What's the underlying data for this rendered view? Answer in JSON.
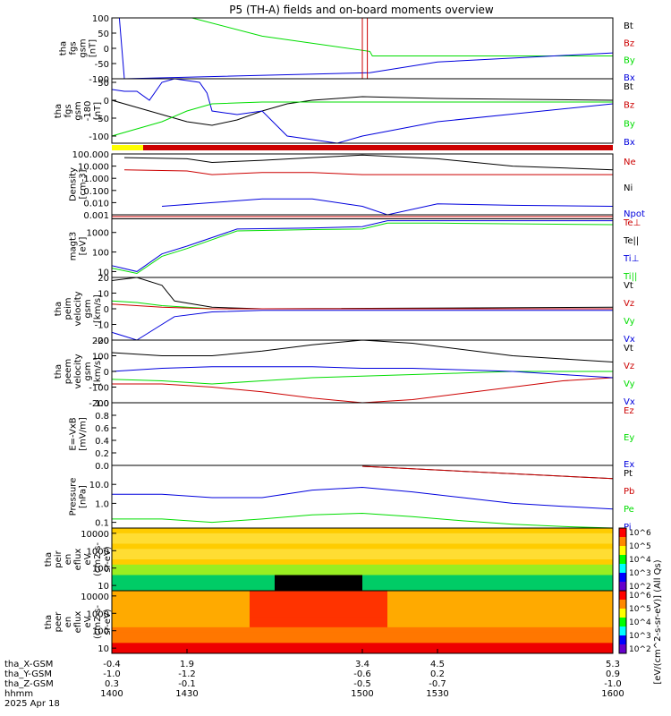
{
  "title": "P5 (TH-A) fields and on-board moments overview",
  "colors": {
    "black": "#000000",
    "red": "#cc0000",
    "green": "#00dd00",
    "blue": "#0000dd",
    "yellow": "#ffff00"
  },
  "chart_data": [
    {
      "type": "line",
      "ylabel": [
        "tha",
        "fgs",
        "gsm",
        "[nT]"
      ],
      "ylim": [
        -100,
        100
      ],
      "yticks": [
        "100",
        "50",
        "0",
        "-50",
        "-100"
      ],
      "legend": [
        "Bt",
        "Bz",
        "By",
        "Bx"
      ],
      "series": [
        {
          "name": "By",
          "x": [
            1400,
            1432,
            1460,
            1503,
            1504,
            1530,
            1600
          ],
          "y": [
            100,
            100,
            40,
            -10,
            -25,
            -25,
            -25
          ]
        },
        {
          "name": "Bx",
          "x": [
            1403,
            1405,
            1503,
            1530,
            1600
          ],
          "y": [
            100,
            -100,
            -80,
            -45,
            -15
          ]
        },
        {
          "name": "Bz",
          "x": [
            1500,
            1500,
            1502,
            1502
          ],
          "y": [
            -100,
            100,
            100,
            -100
          ]
        }
      ]
    },
    {
      "type": "line",
      "ylabel": [
        "tha",
        "fgs",
        "gsm",
        "-180",
        "[nT]"
      ],
      "ylim": [
        -120,
        60
      ],
      "yticks": [
        "50",
        "0",
        "-50",
        "-100"
      ],
      "legend": [
        "Bt",
        "Bz",
        "By",
        "Bx"
      ],
      "series": [
        {
          "name": "Bt",
          "x": [
            1400,
            1410,
            1420,
            1430,
            1440,
            1450,
            1460,
            1470,
            1480,
            1490,
            1500,
            1530,
            1600
          ],
          "y": [
            0,
            -20,
            -40,
            -60,
            -70,
            -55,
            -30,
            -10,
            0,
            5,
            10,
            5,
            0
          ]
        },
        {
          "name": "Bx",
          "x": [
            1400,
            1405,
            1410,
            1415,
            1420,
            1425,
            1430,
            1435,
            1438,
            1440,
            1450,
            1460,
            1470,
            1490,
            1500,
            1530,
            1600
          ],
          "y": [
            30,
            25,
            25,
            0,
            50,
            60,
            55,
            50,
            20,
            -30,
            -40,
            -30,
            -100,
            -120,
            -100,
            -60,
            -10
          ]
        },
        {
          "name": "By",
          "x": [
            1400,
            1410,
            1420,
            1430,
            1440,
            1460,
            1480,
            1500,
            1530,
            1600
          ],
          "y": [
            -100,
            -80,
            -60,
            -30,
            -10,
            -5,
            -5,
            -5,
            -5,
            -5
          ]
        }
      ]
    },
    {
      "type": "line",
      "ylabel": [
        "Density",
        "[cm-3]"
      ],
      "ylim": [
        0.001,
        100
      ],
      "yscale": "log",
      "yticks": [
        "100.000",
        "10.000",
        "1.000",
        "0.100",
        "0.010",
        "0.001"
      ],
      "legend": [
        "Ne",
        "Ni",
        "Npot"
      ],
      "series": [
        {
          "name": "Ni",
          "x": [
            1405,
            1430,
            1440,
            1460,
            1480,
            1500,
            1530,
            1560,
            1600
          ],
          "y": [
            50,
            40,
            20,
            30,
            50,
            80,
            40,
            10,
            5
          ]
        },
        {
          "name": "Ne",
          "x": [
            1405,
            1430,
            1440,
            1460,
            1480,
            1500,
            1530,
            1560,
            1600
          ],
          "y": [
            5,
            4,
            2,
            3,
            3,
            2,
            2,
            2,
            2
          ]
        },
        {
          "name": "Npot",
          "x": [
            1420,
            1440,
            1460,
            1480,
            1500,
            1510,
            1530,
            1560,
            1600
          ],
          "y": [
            0.005,
            0.01,
            0.02,
            0.02,
            0.005,
            0.001,
            0.008,
            0.006,
            0.005
          ]
        }
      ]
    },
    {
      "type": "line",
      "ylabel": [
        "magt3",
        "[eV]"
      ],
      "ylim": [
        5,
        8000
      ],
      "yscale": "log",
      "yticks": [
        "1000",
        "100",
        "10"
      ],
      "legend": [
        "Te⊥",
        "Te||",
        "Ti⊥",
        "Ti||"
      ],
      "series": [
        {
          "name": "Te⊥",
          "x": [
            1400,
            1600
          ],
          "y": [
            6500,
            6500
          ]
        },
        {
          "name": "Te||",
          "x": [
            1400,
            1600
          ],
          "y": [
            5000,
            5000
          ]
        },
        {
          "name": "Ti⊥",
          "x": [
            1400,
            1410,
            1420,
            1430,
            1450,
            1480,
            1500,
            1510,
            1530,
            1600
          ],
          "y": [
            20,
            10,
            80,
            200,
            1500,
            1700,
            2000,
            4000,
            4000,
            4000
          ]
        },
        {
          "name": "Ti||",
          "x": [
            1400,
            1410,
            1420,
            1430,
            1450,
            1480,
            1500,
            1510,
            1530,
            1600
          ],
          "y": [
            15,
            8,
            60,
            150,
            1200,
            1400,
            1500,
            3000,
            3000,
            2500
          ]
        }
      ]
    },
    {
      "type": "line",
      "ylabel": [
        "tha",
        "peim",
        "velocity",
        "gsm",
        "[km/s]"
      ],
      "ylim": [
        -20,
        20
      ],
      "yticks": [
        "20",
        "10",
        "0",
        "-10",
        "-20"
      ],
      "legend": [
        "Vt",
        "Vz",
        "Vy",
        "Vx"
      ],
      "series": [
        {
          "name": "Vt",
          "x": [
            1400,
            1410,
            1420,
            1425,
            1440,
            1460,
            1600
          ],
          "y": [
            18,
            20,
            15,
            5,
            1,
            0,
            1
          ]
        },
        {
          "name": "Vx",
          "x": [
            1400,
            1410,
            1420,
            1425,
            1440,
            1460,
            1600
          ],
          "y": [
            -15,
            -20,
            -10,
            -5,
            -2,
            -1,
            -1
          ]
        },
        {
          "name": "Vy",
          "x": [
            1400,
            1410,
            1420,
            1440,
            1600
          ],
          "y": [
            5,
            4,
            2,
            0,
            0
          ]
        },
        {
          "name": "Vz",
          "x": [
            1400,
            1410,
            1420,
            1440,
            1600
          ],
          "y": [
            3,
            2,
            1,
            0,
            0
          ]
        }
      ]
    },
    {
      "type": "line",
      "ylabel": [
        "tha",
        "peem",
        "velocity",
        "gsm",
        "[km/s]"
      ],
      "ylim": [
        -200,
        200
      ],
      "yticks": [
        "200",
        "100",
        "0",
        "-100",
        "-200"
      ],
      "legend": [
        "Vt",
        "Vz",
        "Vy",
        "Vx"
      ],
      "series": [
        {
          "name": "Vt",
          "x": [
            1400,
            1420,
            1440,
            1460,
            1480,
            1500,
            1520,
            1540,
            1560,
            1580,
            1600
          ],
          "y": [
            120,
            100,
            100,
            130,
            170,
            200,
            180,
            140,
            100,
            80,
            60
          ]
        },
        {
          "name": "Vz",
          "x": [
            1400,
            1420,
            1440,
            1460,
            1480,
            1500,
            1520,
            1540,
            1560,
            1580,
            1600
          ],
          "y": [
            -80,
            -80,
            -100,
            -130,
            -170,
            -200,
            -180,
            -140,
            -100,
            -60,
            -40
          ]
        },
        {
          "name": "Vy",
          "x": [
            1400,
            1420,
            1440,
            1460,
            1480,
            1500,
            1520,
            1540,
            1560,
            1580,
            1600
          ],
          "y": [
            -50,
            -60,
            -80,
            -60,
            -40,
            -30,
            -20,
            -10,
            0,
            0,
            0
          ]
        },
        {
          "name": "Vx",
          "x": [
            1400,
            1420,
            1440,
            1460,
            1480,
            1500,
            1520,
            1540,
            1560,
            1580,
            1600
          ],
          "y": [
            0,
            20,
            30,
            30,
            30,
            20,
            20,
            10,
            0,
            -20,
            -40
          ]
        }
      ]
    },
    {
      "type": "line",
      "ylabel": [
        "E=-VxB",
        "[mV/m]"
      ],
      "ylim": [
        0,
        1
      ],
      "yticks": [
        "1.0",
        "0.8",
        "0.6",
        "0.4",
        "0.2",
        "0.0"
      ],
      "legend": [
        "Ez",
        "Ey",
        "Ex"
      ],
      "series": []
    },
    {
      "type": "line",
      "ylabel": [
        "Pressure",
        "[nPa]"
      ],
      "ylim": [
        0.05,
        100
      ],
      "yscale": "log",
      "yticks": [
        "10.0",
        "1.0",
        "0.1"
      ],
      "legend": [
        "Pt",
        "Pb",
        "Pe",
        "Pi"
      ],
      "series": [
        {
          "name": "Pt",
          "x": [
            1500,
            1600
          ],
          "y": [
            90,
            20
          ]
        },
        {
          "name": "Pb",
          "x": [
            1500,
            1600
          ],
          "y": [
            90,
            20
          ]
        },
        {
          "name": "Pi",
          "x": [
            1400,
            1420,
            1440,
            1460,
            1480,
            1500,
            1520,
            1540,
            1560,
            1580,
            1600
          ],
          "y": [
            3,
            3,
            2,
            2,
            5,
            7,
            4,
            2,
            1,
            0.7,
            0.5
          ]
        },
        {
          "name": "Pe",
          "x": [
            1400,
            1420,
            1440,
            1460,
            1480,
            1500,
            1520,
            1540,
            1560,
            1580,
            1600
          ],
          "y": [
            0.15,
            0.15,
            0.1,
            0.15,
            0.25,
            0.3,
            0.2,
            0.12,
            0.08,
            0.06,
            0.05
          ]
        }
      ]
    },
    {
      "type": "heatmap",
      "ylabel": [
        "tha",
        "peir",
        "en",
        "eflux",
        "eV",
        "(cm2-s-",
        "sr-eV)"
      ],
      "ylim": [
        5,
        20000
      ],
      "yscale": "log",
      "yticks": [
        "10000",
        "1000",
        "100",
        "10"
      ]
    },
    {
      "type": "heatmap",
      "ylabel": [
        "tha",
        "peer",
        "en",
        "eflux",
        "eV",
        "(cm2-s-",
        "sr-eV)"
      ],
      "ylim": [
        5,
        20000
      ],
      "yscale": "log",
      "yticks": [
        "10000",
        "1000",
        "100",
        "10"
      ]
    }
  ],
  "colorbar": {
    "label": "[eV/(cm^2-s-sr-eV)] (All Qs)",
    "ticks_top": [
      "10^6",
      "10^5",
      "10^4",
      "10^3",
      "10^2"
    ],
    "ticks_bottom": [
      "10^6",
      "10^5",
      "10^4",
      "10^3",
      "10^2"
    ]
  },
  "xaxis": {
    "rows": [
      {
        "label": "tha_X-GSM",
        "values": [
          "-0.4",
          "1.9",
          "3.4",
          "4.5",
          "5.3"
        ]
      },
      {
        "label": "tha_Y-GSM",
        "values": [
          "-1.0",
          "-1.2",
          "-0.6",
          "0.2",
          "0.9"
        ]
      },
      {
        "label": "tha_Z-GSM",
        "values": [
          "0.3",
          "-0.1",
          "-0.5",
          "-0.7",
          "-1.0"
        ]
      },
      {
        "label": "hhmm",
        "values": [
          "1400",
          "1430",
          "1500",
          "1530",
          "1600"
        ]
      }
    ],
    "date": "2025 Apr 18"
  }
}
